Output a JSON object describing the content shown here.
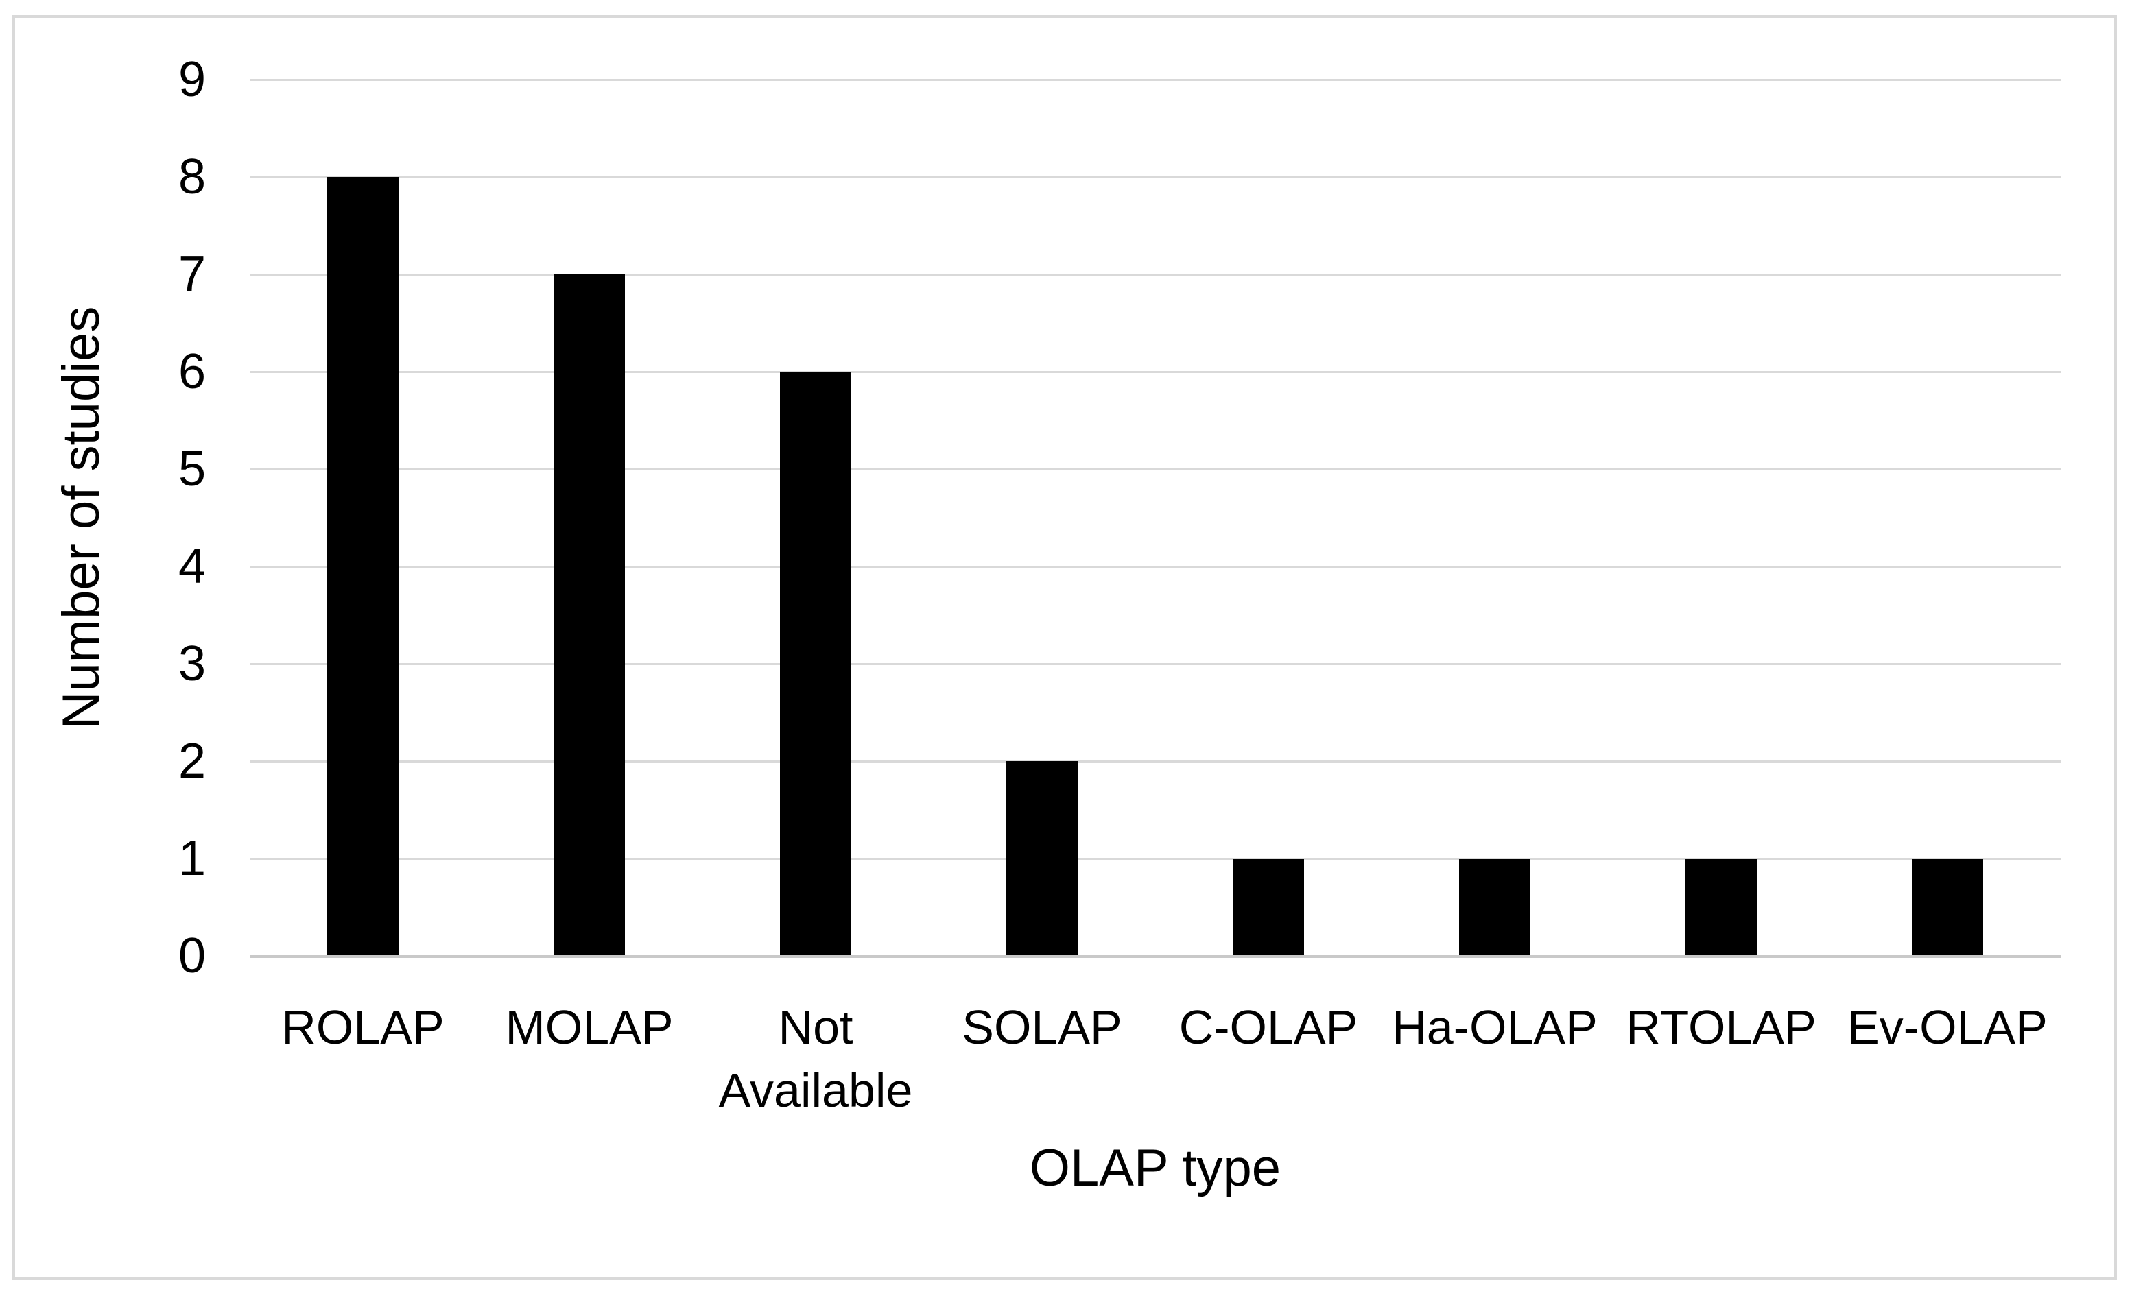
{
  "chart_data": {
    "type": "bar",
    "categories": [
      "ROLAP",
      "MOLAP",
      "Not Available",
      "SOLAP",
      "C-OLAP",
      "Ha-OLAP",
      "RTOLAP",
      "Ev-OLAP"
    ],
    "values": [
      8,
      7,
      6,
      2,
      1,
      1,
      1,
      1
    ],
    "title": "",
    "xlabel": "OLAP type",
    "ylabel": "Number of studies",
    "ylim": [
      0,
      9
    ],
    "yticks": [
      0,
      1,
      2,
      3,
      4,
      5,
      6,
      7,
      8,
      9
    ],
    "grid": true,
    "legend_position": "none",
    "bar_color": "#000000",
    "gridline_color": "#d9d9d9",
    "axis_line_color": "#c9c9c9",
    "border_color": "#d9d9d9",
    "background_color": "#ffffff",
    "text_color": "#000000"
  }
}
